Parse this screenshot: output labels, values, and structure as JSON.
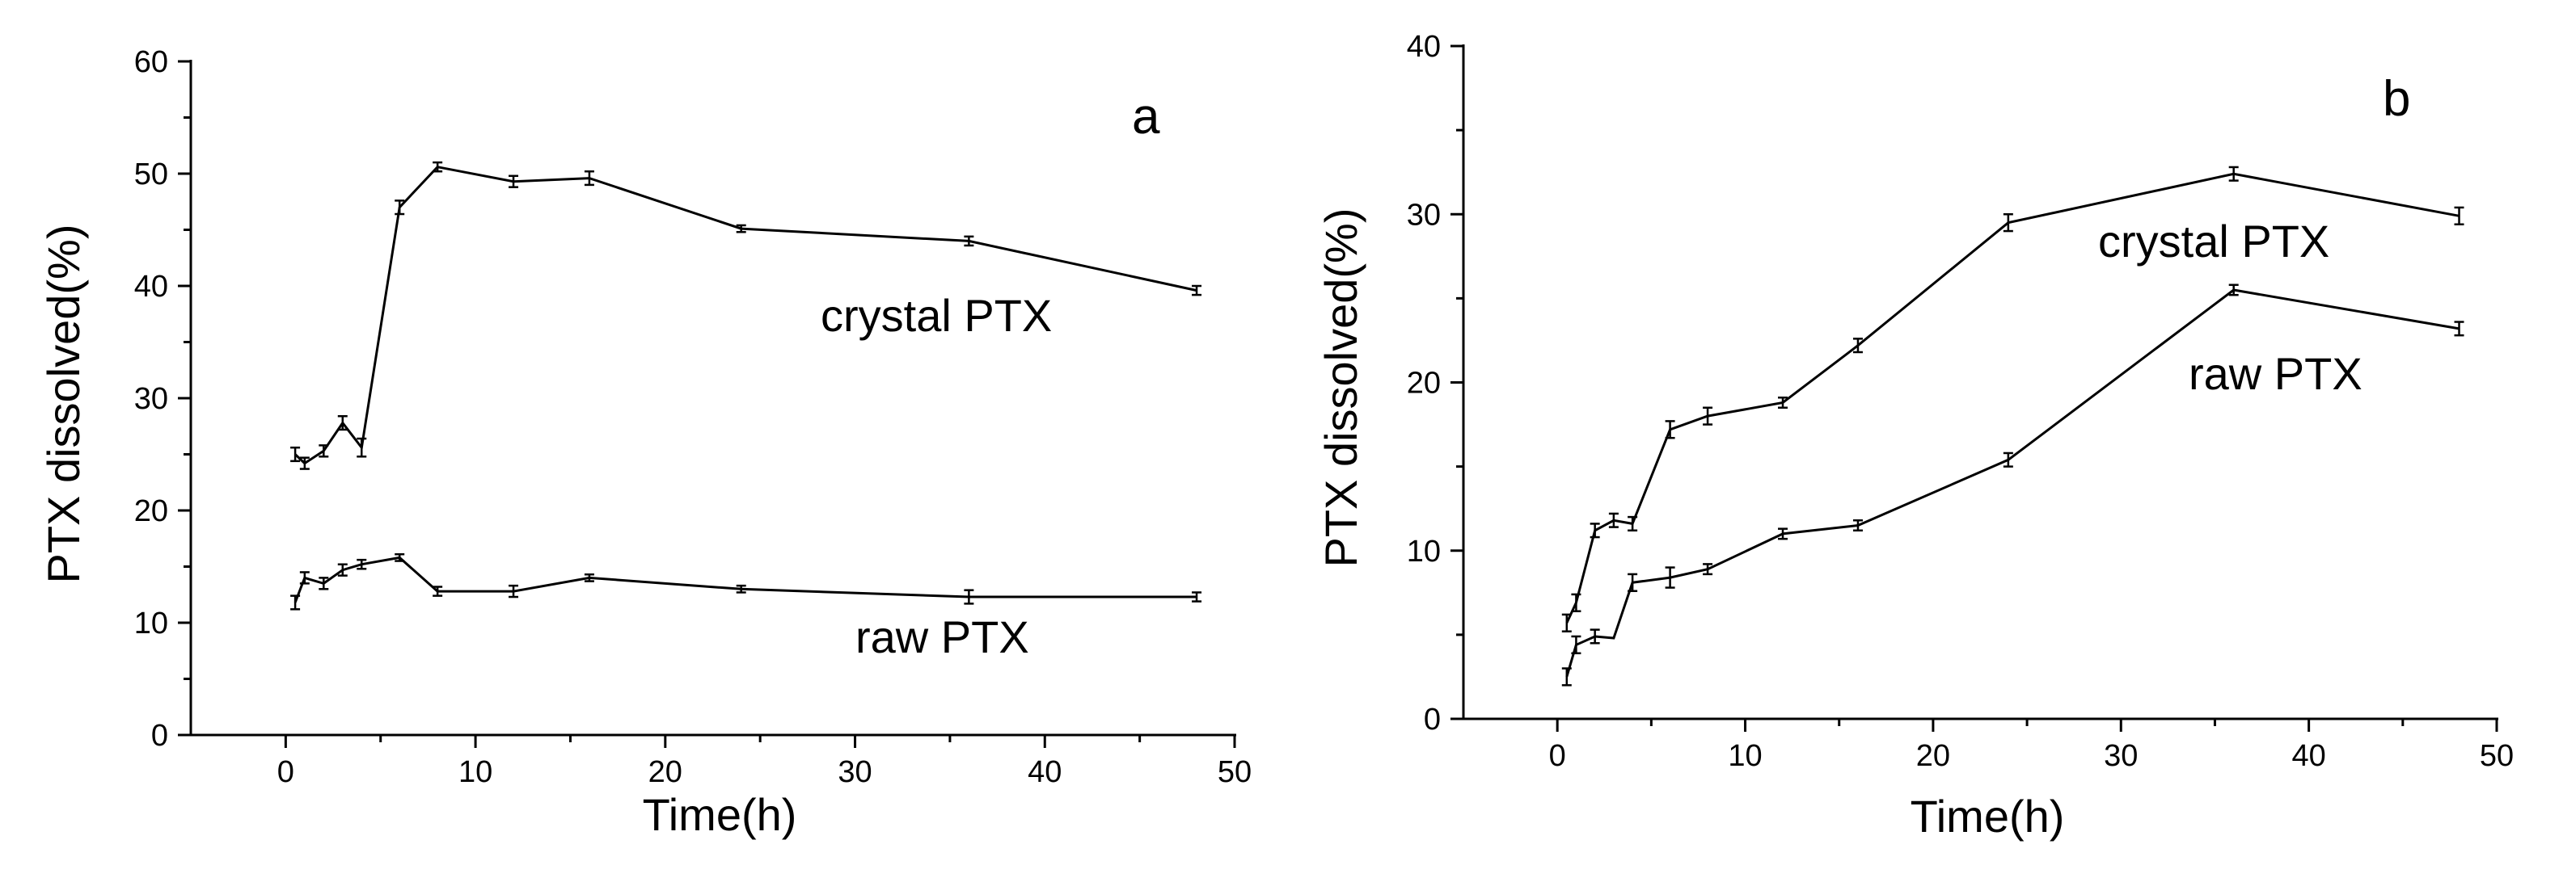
{
  "chart_data": [
    {
      "panel": "a",
      "type": "line",
      "xlabel": "Time(h)",
      "ylabel": "PTX dissolved(%)",
      "xlim": [
        -5,
        50
      ],
      "ylim": [
        0,
        60
      ],
      "xticks": [
        0,
        10,
        20,
        30,
        40,
        50
      ],
      "yticks": [
        0,
        10,
        20,
        30,
        40,
        50,
        60
      ],
      "series": [
        {
          "name": "crystal PTX",
          "x": [
            0.5,
            1,
            2,
            3,
            4,
            6,
            8,
            12,
            16,
            24,
            36,
            48
          ],
          "y": [
            25,
            24.2,
            25.3,
            27.8,
            25.6,
            47,
            50.6,
            49.3,
            49.6,
            45.1,
            44,
            39.6
          ],
          "err": [
            0.6,
            0.5,
            0.5,
            0.6,
            0.8,
            0.6,
            0.4,
            0.5,
            0.6,
            0.3,
            0.4,
            0.4
          ]
        },
        {
          "name": "raw PTX",
          "x": [
            0.5,
            1,
            2,
            3,
            4,
            6,
            8,
            12,
            16,
            24,
            36,
            48
          ],
          "y": [
            11.8,
            14,
            13.5,
            14.7,
            15.2,
            15.8,
            12.8,
            12.8,
            14,
            13,
            12.3,
            12.3
          ],
          "err": [
            0.6,
            0.5,
            0.5,
            0.5,
            0.4,
            0.3,
            0.4,
            0.5,
            0.3,
            0.3,
            0.6,
            0.4
          ]
        }
      ]
    },
    {
      "panel": "b",
      "type": "line",
      "xlabel": "Time(h)",
      "ylabel": "PTX dissolved(%)",
      "xlim": [
        -5,
        50
      ],
      "ylim": [
        0,
        40
      ],
      "xticks": [
        0,
        10,
        20,
        30,
        40,
        50
      ],
      "yticks": [
        0,
        10,
        20,
        30,
        40
      ],
      "series": [
        {
          "name": "crystal PTX",
          "x": [
            0.5,
            1,
            2,
            3,
            4,
            6,
            8,
            12,
            16,
            24,
            36,
            48
          ],
          "y": [
            5.7,
            6.9,
            11.2,
            11.8,
            11.6,
            17.2,
            18,
            18.8,
            22.2,
            29.5,
            32.4,
            29.9
          ],
          "err": [
            0.5,
            0.5,
            0.4,
            0.4,
            0.4,
            0.5,
            0.5,
            0.3,
            0.4,
            0.5,
            0.4,
            0.5
          ]
        },
        {
          "name": "raw PTX",
          "x": [
            0.5,
            1,
            2,
            3,
            4,
            6,
            8,
            12,
            16,
            24,
            36,
            48
          ],
          "y": [
            2.5,
            4.4,
            4.9,
            4.8,
            8.1,
            8.4,
            8.9,
            11,
            11.5,
            15.4,
            25.5,
            23.2
          ],
          "err": [
            0.5,
            0.5,
            0.4,
            0.0,
            0.5,
            0.6,
            0.3,
            0.3,
            0.3,
            0.4,
            0.3,
            0.4
          ]
        }
      ]
    }
  ]
}
